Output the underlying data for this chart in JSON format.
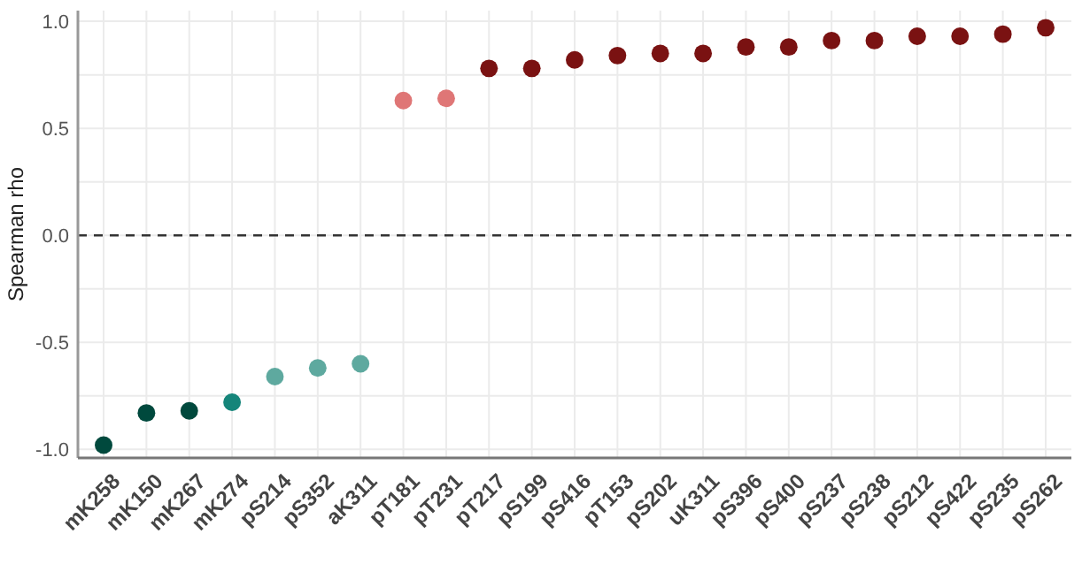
{
  "chart_data": {
    "type": "scatter",
    "ylabel": "Spearman rho",
    "categories": [
      "mK258",
      "mK150",
      "mK267",
      "mK274",
      "pS214",
      "pS352",
      "aK311",
      "pT181",
      "pT231",
      "pT217",
      "pS199",
      "pS416",
      "pT153",
      "pS202",
      "uK311",
      "pS396",
      "pS400",
      "pS237",
      "pS238",
      "pS212",
      "pS422",
      "pS235",
      "pS262"
    ],
    "series": [
      {
        "values": [
          -0.98,
          -0.83,
          -0.82,
          -0.78,
          -0.66,
          -0.62,
          -0.6,
          0.63,
          0.64,
          0.78,
          0.78,
          0.82,
          0.84,
          0.85,
          0.85,
          0.88,
          0.88,
          0.91,
          0.91,
          0.93,
          0.93,
          0.94,
          0.97
        ],
        "colors": [
          "#00493d",
          "#00493d",
          "#00493d",
          "#15857a",
          "#5ea99f",
          "#5ea99f",
          "#5ea99f",
          "#df7676",
          "#df7676",
          "#7a1212",
          "#7a1212",
          "#7a1212",
          "#7a1212",
          "#7a1212",
          "#7a1212",
          "#7a1212",
          "#7a1212",
          "#7a1212",
          "#7a1212",
          "#7a1212",
          "#7a1212",
          "#7a1212",
          "#7a1212"
        ]
      }
    ],
    "ylim": [
      -1.04,
      1.05
    ],
    "yticks": [
      {
        "value": -1,
        "label": "-1.0"
      },
      {
        "value": -0.75,
        "label": null
      },
      -0.5,
      {
        "value": -0.25,
        "label": null
      },
      {
        "value": 0,
        "label": "0.0"
      },
      {
        "value": 0.25,
        "label": null
      },
      0.5,
      {
        "value": 0.75,
        "label": null
      },
      {
        "value": 1,
        "label": "1.0"
      }
    ],
    "ref_lines": [
      {
        "axis": "y",
        "value": 0,
        "label": null,
        "color": "#333333",
        "line_style": "dashed"
      }
    ],
    "grid": true,
    "marker": "circle"
  }
}
